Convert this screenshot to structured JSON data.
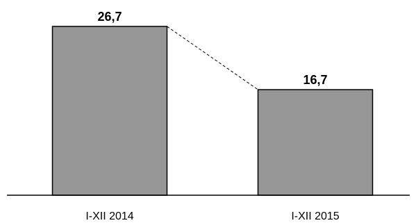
{
  "chart_data": {
    "type": "bar",
    "categories": [
      "I-XII 2014",
      "I-XII 2015"
    ],
    "values": [
      26.7,
      16.7
    ],
    "data_labels": [
      "26,7",
      "16,7"
    ],
    "title": "",
    "xlabel": "",
    "ylabel": "",
    "ylim": [
      0,
      30
    ],
    "grid": false,
    "legend": "none",
    "bar_color": "#969696",
    "edge_color": "#000000",
    "connector_line": "dashed"
  }
}
